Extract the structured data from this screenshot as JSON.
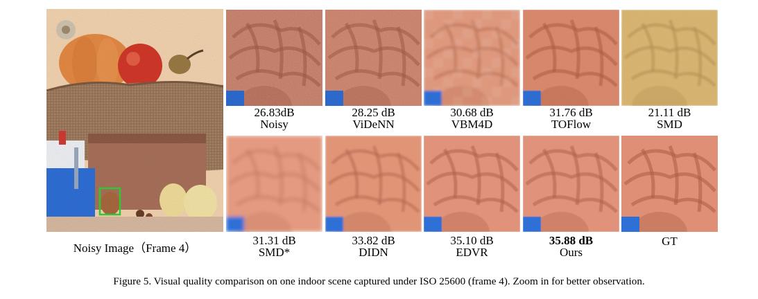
{
  "main_image": {
    "caption": "Noisy Image（Frame 4）"
  },
  "patches": [
    {
      "score": "26.83dB",
      "method": "Noisy",
      "bold": false,
      "style": "noisy-strong"
    },
    {
      "score": "28.25 dB",
      "method": "ViDeNN",
      "bold": false,
      "style": "noisy-medium"
    },
    {
      "score": "30.68 dB",
      "method": "VBM4D",
      "bold": false,
      "style": "blocky"
    },
    {
      "score": "31.76 dB",
      "method": "TOFlow",
      "bold": false,
      "style": "slight-noise"
    },
    {
      "score": "21.11 dB",
      "method": "SMD",
      "bold": false,
      "style": "yellow-tint"
    },
    {
      "score": "31.31 dB",
      "method": "SMD*",
      "bold": false,
      "style": "smooth-blur"
    },
    {
      "score": "33.82 dB",
      "method": "DIDN",
      "bold": false,
      "style": "smooth"
    },
    {
      "score": "35.10 dB",
      "method": "EDVR",
      "bold": false,
      "style": "sharp"
    },
    {
      "score": "35.88 dB",
      "method": "Ours",
      "bold": true,
      "style": "sharp"
    },
    {
      "score": "",
      "method": "GT",
      "bold": false,
      "style": "clean"
    }
  ],
  "figure_caption": "Figure 5. Visual quality comparison on one indoor scene captured under ISO 25600 (frame 4). Zoom in for better observation.",
  "colors": {
    "walnut": "#d9866a",
    "walnut_dark": "#a85a44",
    "blue_toy": "#2f6fd6",
    "highlight_box": "#34c435"
  }
}
